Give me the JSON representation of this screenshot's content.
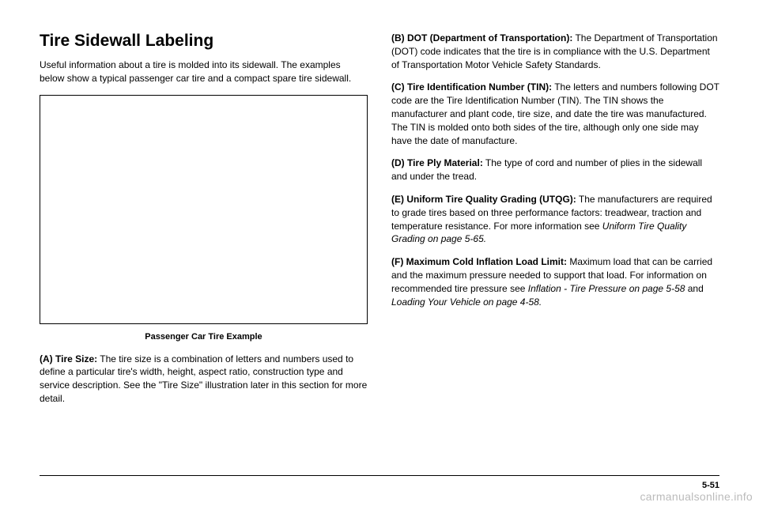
{
  "heading": "Tire Sidewall Labeling",
  "intro": "Useful information about a tire is molded into its sidewall. The examples below show a typical passenger car tire and a compact spare tire sidewall.",
  "figure_caption": "Passenger Car Tire Example",
  "left_paras": [
    {
      "label": "(A) Tire Size:",
      "text": " The tire size is a combination of letters and numbers used to define a particular tire's width, height, aspect ratio, construction type and service description. See the \"Tire Size\" illustration later in this section for more detail."
    }
  ],
  "right_paras": [
    {
      "label": "(B) DOT (Department of Transportation):",
      "text": " The Department of Transportation (DOT) code indicates that the tire is in compliance with the U.S. Department of Transportation Motor Vehicle Safety Standards."
    },
    {
      "label": "(C) Tire Identification Number (TIN):",
      "text": " The letters and numbers following DOT code are the Tire Identification Number (TIN). The TIN shows the manufacturer and plant code, tire size, and date the tire was manufactured. The TIN is molded onto both sides of the tire, although only one side may have the date of manufacture."
    },
    {
      "label": "(D) Tire Ply Material:",
      "text": " The type of cord and number of plies in the sidewall and under the tread."
    },
    {
      "label": "(E) Uniform Tire Quality Grading (UTQG):",
      "text": " The manufacturers are required to grade tires based on three performance factors: treadwear, traction and temperature resistance. For more information see ",
      "italic": "Uniform Tire Quality Grading on page 5-65."
    },
    {
      "label": "(F) Maximum Cold Inflation Load Limit:",
      "text": " Maximum load that can be carried and the maximum pressure needed to support that load. For information on recommended tire pressure see ",
      "italic": "Inflation - Tire Pressure on page 5-58",
      "text2": " and ",
      "italic2": "Loading Your Vehicle on page 4-58."
    }
  ],
  "page_number": "5-51",
  "watermark": "carmanualsonline.info"
}
